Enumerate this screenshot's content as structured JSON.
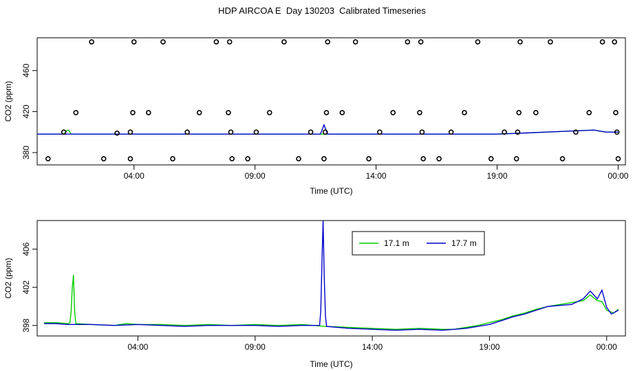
{
  "title": "HDP AIRCOA E  Day 130203  Calibrated Timeseries",
  "colors": {
    "green": "#00cc00",
    "blue": "#0000cc",
    "axis": "#000000"
  },
  "chart_data": [
    {
      "type": "line",
      "title": "",
      "xlabel": "Time (UTC)",
      "ylabel": "CO2 (ppm)",
      "xlim": [
        0.0,
        24.3
      ],
      "ylim": [
        368,
        492
      ],
      "xticks": [
        4,
        9,
        14,
        19,
        24
      ],
      "xtick_labels": [
        "04:00",
        "09:00",
        "14:00",
        "19:00",
        "00:00"
      ],
      "yticks": [
        380,
        420,
        460
      ],
      "ytick_labels": [
        "380",
        "420",
        "460"
      ],
      "grid": false,
      "legend": null,
      "series": [
        {
          "name": "",
          "color": "#00cc00",
          "points": [
            [
              0,
              398
            ],
            [
              1.1,
              398
            ],
            [
              1.2,
              401
            ],
            [
              1.3,
              402
            ],
            [
              1.4,
              398
            ],
            [
              2,
              398
            ],
            [
              4,
              398
            ],
            [
              6,
              398
            ],
            [
              8,
              398
            ],
            [
              10,
              398
            ],
            [
              12,
              398
            ],
            [
              12.5,
              398
            ],
            [
              13,
              398
            ],
            [
              14,
              398
            ],
            [
              16,
              398
            ],
            [
              18,
              398
            ],
            [
              19,
              398
            ],
            [
              20,
              399
            ],
            [
              21,
              400
            ],
            [
              22,
              401
            ],
            [
              23,
              402
            ],
            [
              23.5,
              400
            ],
            [
              24,
              400
            ]
          ]
        },
        {
          "name": "",
          "color": "#0000cc",
          "points": [
            [
              0,
              398
            ],
            [
              2,
              398
            ],
            [
              4,
              398
            ],
            [
              6,
              398
            ],
            [
              8,
              398
            ],
            [
              10,
              398
            ],
            [
              11.7,
              398
            ],
            [
              11.85,
              407
            ],
            [
              12.0,
              398
            ],
            [
              14,
              398
            ],
            [
              16,
              398
            ],
            [
              18,
              398
            ],
            [
              19,
              398
            ],
            [
              20,
              399
            ],
            [
              21,
              400
            ],
            [
              22,
              401
            ],
            [
              23,
              402
            ],
            [
              23.5,
              400
            ],
            [
              24,
              400
            ]
          ]
        },
        {
          "name": "",
          "type": "scatter",
          "marker": "open-circle",
          "color": "#000000",
          "points": [
            [
              0.45,
              374
            ],
            [
              1.1,
              400
            ],
            [
              1.6,
              419
            ],
            [
              2.25,
              488
            ],
            [
              2.75,
              374
            ],
            [
              3.3,
              399
            ],
            [
              3.85,
              374
            ],
            [
              3.85,
              400
            ],
            [
              3.95,
              419
            ],
            [
              4.0,
              488
            ],
            [
              4.6,
              419
            ],
            [
              5.2,
              488
            ],
            [
              5.6,
              374
            ],
            [
              6.2,
              400
            ],
            [
              6.7,
              419
            ],
            [
              7.4,
              488
            ],
            [
              7.9,
              419
            ],
            [
              7.95,
              488
            ],
            [
              8.0,
              400
            ],
            [
              8.05,
              374
            ],
            [
              8.7,
              374
            ],
            [
              9.05,
              400
            ],
            [
              9.6,
              419
            ],
            [
              10.2,
              488
            ],
            [
              10.8,
              374
            ],
            [
              11.3,
              400
            ],
            [
              11.85,
              374
            ],
            [
              11.9,
              400
            ],
            [
              11.95,
              419
            ],
            [
              12.0,
              488
            ],
            [
              12.6,
              419
            ],
            [
              13.15,
              488
            ],
            [
              13.7,
              374
            ],
            [
              14.15,
              400
            ],
            [
              14.7,
              419
            ],
            [
              15.3,
              488
            ],
            [
              15.8,
              419
            ],
            [
              15.85,
              488
            ],
            [
              15.9,
              400
            ],
            [
              15.95,
              374
            ],
            [
              16.6,
              374
            ],
            [
              17.1,
              400
            ],
            [
              17.65,
              419
            ],
            [
              18.2,
              488
            ],
            [
              18.75,
              374
            ],
            [
              19.3,
              400
            ],
            [
              19.8,
              374
            ],
            [
              19.85,
              400
            ],
            [
              19.9,
              419
            ],
            [
              19.95,
              488
            ],
            [
              20.6,
              419
            ],
            [
              21.2,
              488
            ],
            [
              21.7,
              374
            ],
            [
              22.25,
              400
            ],
            [
              22.8,
              419
            ],
            [
              23.35,
              488
            ],
            [
              23.85,
              488
            ],
            [
              23.9,
              419
            ],
            [
              23.95,
              400
            ],
            [
              24.0,
              374
            ]
          ]
        }
      ]
    },
    {
      "type": "line",
      "title": "",
      "xlabel": "Time (UTC)",
      "ylabel": "CO2 (ppm)",
      "xlim": [
        -0.3,
        24.8
      ],
      "ylim": [
        396.9,
        409.0
      ],
      "xticks": [
        4,
        9,
        14,
        19,
        24
      ],
      "xtick_labels": [
        "04:00",
        "09:00",
        "14:00",
        "19:00",
        "00:00"
      ],
      "yticks": [
        398,
        402,
        406
      ],
      "ytick_labels": [
        "398",
        "402",
        "406"
      ],
      "grid": false,
      "legend": "top-center",
      "series": [
        {
          "name": "17.1 m",
          "color": "#00cc00",
          "points": [
            [
              0,
              398.3
            ],
            [
              0.5,
              398.3
            ],
            [
              1,
              398.2
            ],
            [
              1.1,
              398.3
            ],
            [
              1.15,
              399.5
            ],
            [
              1.2,
              402.0
            ],
            [
              1.25,
              403.3
            ],
            [
              1.3,
              399.5
            ],
            [
              1.35,
              398.2
            ],
            [
              2,
              398.1
            ],
            [
              3,
              398.0
            ],
            [
              3.5,
              398.2
            ],
            [
              4,
              398.1
            ],
            [
              5,
              398.1
            ],
            [
              6,
              398.0
            ],
            [
              7,
              398.1
            ],
            [
              8,
              398.0
            ],
            [
              9,
              398.1
            ],
            [
              10,
              398.0
            ],
            [
              11,
              398.1
            ],
            [
              12,
              397.9
            ],
            [
              13,
              397.8
            ],
            [
              14,
              397.7
            ],
            [
              15,
              397.6
            ],
            [
              16,
              397.7
            ],
            [
              17,
              397.6
            ],
            [
              17.5,
              397.6
            ],
            [
              18,
              397.8
            ],
            [
              18.5,
              398.0
            ],
            [
              19,
              398.3
            ],
            [
              19.5,
              398.6
            ],
            [
              20,
              399.0
            ],
            [
              20.5,
              399.3
            ],
            [
              21,
              399.7
            ],
            [
              21.5,
              400.0
            ],
            [
              22,
              400.2
            ],
            [
              22.5,
              400.4
            ],
            [
              23,
              400.6
            ],
            [
              23.3,
              401.2
            ],
            [
              23.6,
              400.6
            ],
            [
              23.8,
              400.5
            ],
            [
              24,
              399.6
            ],
            [
              24.3,
              399.3
            ],
            [
              24.5,
              399.7
            ]
          ]
        },
        {
          "name": "17.7 m",
          "color": "#0000cc",
          "points": [
            [
              0,
              398.2
            ],
            [
              0.5,
              398.2
            ],
            [
              1,
              398.1
            ],
            [
              2,
              398.1
            ],
            [
              3,
              398.0
            ],
            [
              4,
              398.1
            ],
            [
              5,
              398.0
            ],
            [
              6,
              397.9
            ],
            [
              7,
              398.0
            ],
            [
              8,
              398.0
            ],
            [
              9,
              398.0
            ],
            [
              10,
              397.9
            ],
            [
              11,
              398.0
            ],
            [
              11.75,
              398.0
            ],
            [
              11.8,
              399.5
            ],
            [
              11.85,
              404.5
            ],
            [
              11.9,
              409.0
            ],
            [
              11.95,
              403.0
            ],
            [
              12.0,
              399.0
            ],
            [
              12.05,
              397.9
            ],
            [
              13,
              397.7
            ],
            [
              14,
              397.6
            ],
            [
              15,
              397.5
            ],
            [
              16,
              397.6
            ],
            [
              17,
              397.5
            ],
            [
              17.5,
              397.6
            ],
            [
              18,
              397.7
            ],
            [
              18.5,
              397.9
            ],
            [
              19,
              398.1
            ],
            [
              19.5,
              398.5
            ],
            [
              20,
              398.9
            ],
            [
              20.5,
              399.2
            ],
            [
              21,
              399.6
            ],
            [
              21.5,
              400.0
            ],
            [
              22,
              400.1
            ],
            [
              22.5,
              400.2
            ],
            [
              23,
              400.8
            ],
            [
              23.3,
              401.6
            ],
            [
              23.6,
              400.8
            ],
            [
              23.8,
              401.7
            ],
            [
              24,
              399.9
            ],
            [
              24.2,
              399.2
            ],
            [
              24.5,
              399.6
            ]
          ]
        }
      ]
    }
  ]
}
